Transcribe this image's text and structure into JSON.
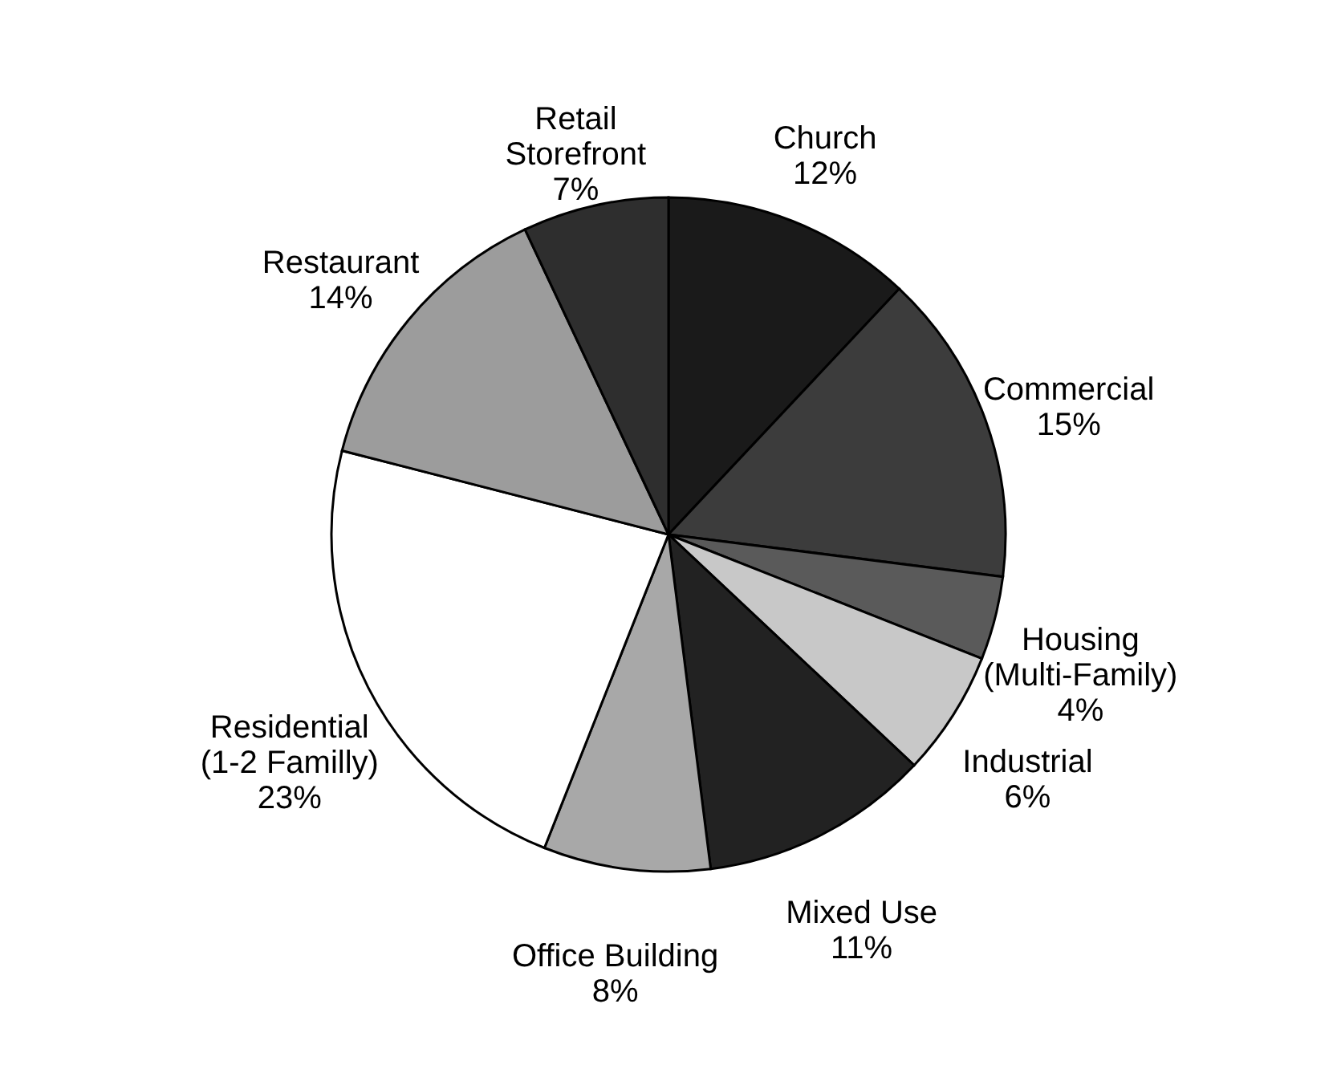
{
  "chart_data": {
    "type": "pie",
    "categories": [
      "Church",
      "Commercial",
      "Housing\n(Multi-Family)",
      "Industrial",
      "Mixed Use",
      "Office Building",
      "Residential\n(1-2 Familly)",
      "Restaurant",
      "Retail\nStorefront"
    ],
    "values": [
      12,
      15,
      4,
      6,
      11,
      8,
      23,
      14,
      7
    ],
    "value_labels": [
      "12%",
      "15%",
      "4%",
      "6%",
      "11%",
      "8%",
      "23%",
      "14%",
      "7%"
    ],
    "colors": [
      "#1a1a1a",
      "#3c3c3c",
      "#5a5a5a",
      "#c8c8c8",
      "#222222",
      "#a8a8a8",
      "#ffffff",
      "#9c9c9c",
      "#2e2e2e"
    ],
    "legend": false
  }
}
